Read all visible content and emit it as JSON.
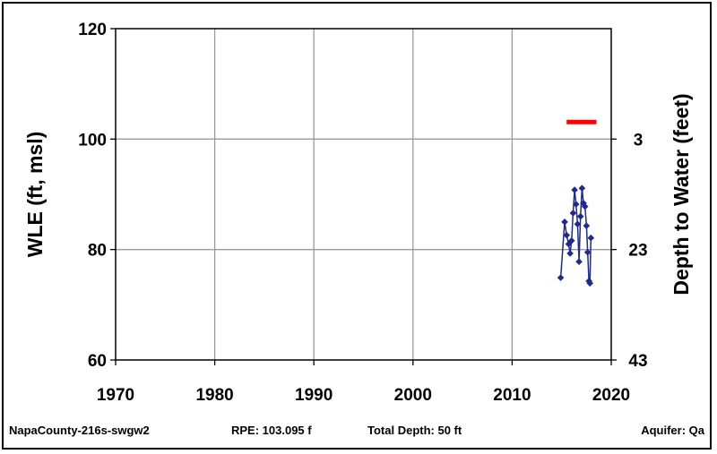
{
  "chart_data": {
    "type": "line",
    "ylabel_left": "WLE (ft, msl)",
    "ylabel_right": "Depth to Water (feet)",
    "xlim": [
      1970,
      2020
    ],
    "ylim_left": [
      60,
      120
    ],
    "x_ticks": [
      "1970",
      "1980",
      "1990",
      "2000",
      "2010",
      "2020"
    ],
    "y_ticks_left": [
      "60",
      "80",
      "100",
      "120"
    ],
    "y_ticks_right": [
      {
        "label": "3",
        "wle": 100
      },
      {
        "label": "23",
        "wle": 80
      },
      {
        "label": "43",
        "wle": 60
      }
    ],
    "grid": true,
    "reference_line": {
      "color": "#ff0000",
      "y": 103.095,
      "x_start": 2015.5,
      "x_end": 2018.5
    },
    "series": [
      {
        "color": "#1f2a8c",
        "points": [
          {
            "x": 2014.9,
            "y": 74.9
          },
          {
            "x": 2015.3,
            "y": 85.0
          },
          {
            "x": 2015.5,
            "y": 82.6
          },
          {
            "x": 2015.7,
            "y": 81.0
          },
          {
            "x": 2015.85,
            "y": 79.3
          },
          {
            "x": 2016.0,
            "y": 81.6
          },
          {
            "x": 2016.15,
            "y": 86.6
          },
          {
            "x": 2016.3,
            "y": 90.8
          },
          {
            "x": 2016.45,
            "y": 88.2
          },
          {
            "x": 2016.6,
            "y": 84.6
          },
          {
            "x": 2016.75,
            "y": 77.8
          },
          {
            "x": 2016.9,
            "y": 86.0
          },
          {
            "x": 2017.05,
            "y": 91.1
          },
          {
            "x": 2017.2,
            "y": 88.4
          },
          {
            "x": 2017.35,
            "y": 87.8
          },
          {
            "x": 2017.5,
            "y": 84.3
          },
          {
            "x": 2017.62,
            "y": 79.5
          },
          {
            "x": 2017.75,
            "y": 74.3
          },
          {
            "x": 2017.85,
            "y": 73.9
          },
          {
            "x": 2017.95,
            "y": 82.1
          }
        ]
      }
    ]
  },
  "footer": {
    "well_id": "NapaCounty-216s-swgw2",
    "rpe": "RPE: 103.095 f",
    "total_depth": "Total Depth: 50 ft",
    "aquifer": "Aquifer: Qa"
  }
}
